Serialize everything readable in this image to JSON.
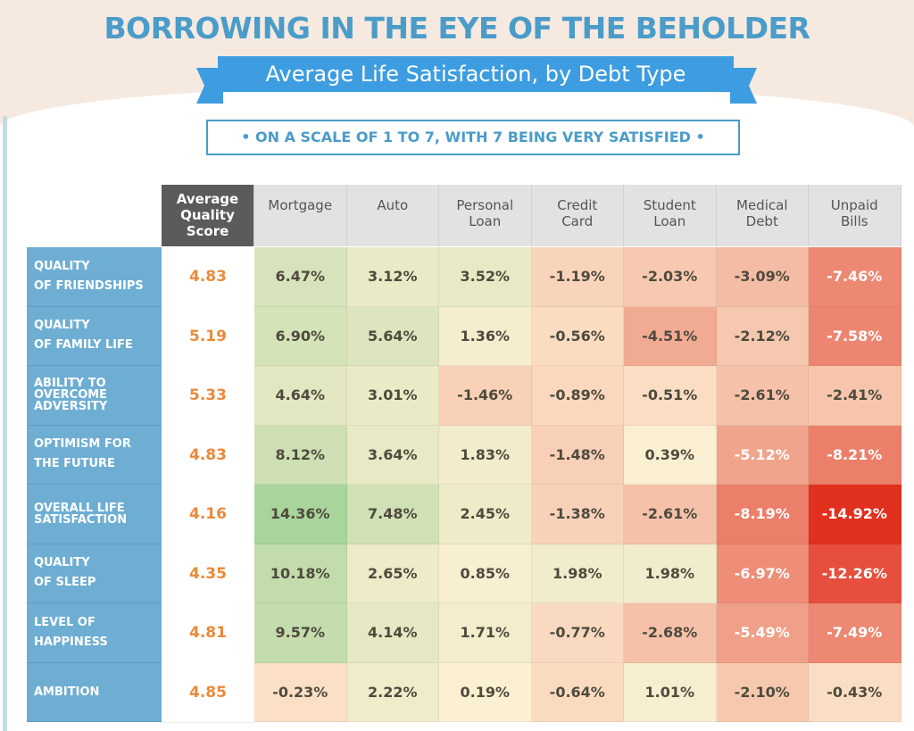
{
  "title": "BORROWING IN THE EYE OF THE BEHOLDER",
  "subtitle": "Average Life Satisfaction, by Debt Type",
  "scale_note": "• ON A SCALE OF 1 TO 7, WITH 7 BEING VERY SATISFIED •",
  "chart_data": {
    "type": "heatmap",
    "title": "Average Life Satisfaction, by Debt Type",
    "score_header": "Average Quality Score",
    "columns": [
      "Mortgage",
      "Auto",
      "Personal Loan",
      "Credit Card",
      "Student Loan",
      "Medical Debt",
      "Unpaid Bills"
    ],
    "rows": [
      {
        "label": "QUALITY OF FRIENDSHIPS",
        "score": "4.83",
        "values": [
          6.47,
          3.12,
          3.52,
          -1.19,
          -2.03,
          -3.09,
          -7.46
        ]
      },
      {
        "label": "QUALITY OF FAMILY LIFE",
        "score": "5.19",
        "values": [
          6.9,
          5.64,
          1.36,
          -0.56,
          -4.51,
          -2.12,
          -7.58
        ]
      },
      {
        "label": "ABILITY TO OVERCOME ADVERSITY",
        "score": "5.33",
        "values": [
          4.64,
          3.01,
          -1.46,
          -0.89,
          -0.51,
          -2.61,
          -2.41
        ]
      },
      {
        "label": "OPTIMISM FOR THE FUTURE",
        "score": "4.83",
        "values": [
          8.12,
          3.64,
          1.83,
          -1.48,
          0.39,
          -5.12,
          -8.21
        ]
      },
      {
        "label": "OVERALL LIFE SATISFACTION",
        "score": "4.16",
        "values": [
          14.36,
          7.48,
          2.45,
          -1.38,
          -2.61,
          -8.19,
          -14.92
        ]
      },
      {
        "label": "QUALITY OF SLEEP",
        "score": "4.35",
        "values": [
          10.18,
          2.65,
          0.85,
          1.98,
          1.98,
          -6.97,
          -12.26
        ]
      },
      {
        "label": "LEVEL OF HAPPINESS",
        "score": "4.81",
        "values": [
          9.57,
          4.14,
          1.71,
          -0.77,
          -2.68,
          -5.49,
          -7.49
        ]
      },
      {
        "label": "AMBITION",
        "score": "4.85",
        "values": [
          -0.23,
          2.22,
          0.19,
          -0.64,
          1.01,
          -2.1,
          -0.43
        ]
      }
    ],
    "value_unit": "%",
    "colors": {
      "positive_max": "#a9d49b",
      "neutral": "#fdf0d3",
      "negative_mid": "#f3b49c",
      "negative_max": "#e2301f",
      "row_label_bg": "#6eaed3",
      "score_text": "#e98a3a"
    }
  }
}
